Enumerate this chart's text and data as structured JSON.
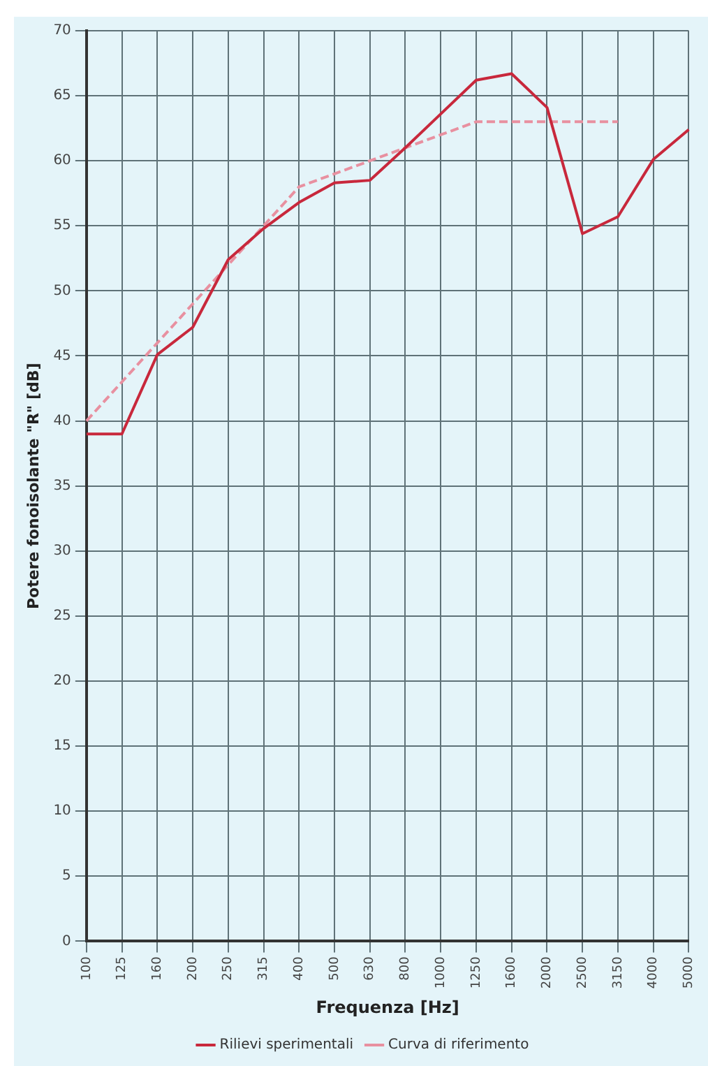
{
  "chart_data": {
    "type": "line",
    "xlabel": "Frequenza [Hz]",
    "ylabel": "Potere fonoisolante \"R\" [dB]",
    "categories": [
      "100",
      "125",
      "160",
      "200",
      "250",
      "315",
      "400",
      "500",
      "630",
      "800",
      "1000",
      "1250",
      "1600",
      "2000",
      "2500",
      "3150",
      "4000",
      "5000"
    ],
    "series": [
      {
        "name": "Rilievi sperimentali",
        "color": "#c8283c",
        "line_style": "solid",
        "values": [
          39,
          39,
          45.1,
          47.2,
          52.4,
          54.8,
          56.8,
          58.3,
          58.5,
          61,
          63.6,
          66.2,
          66.7,
          64.1,
          54.4,
          55.7,
          60.1,
          62.4
        ]
      },
      {
        "name": "Curva di riferimento",
        "color": "#e890a0",
        "line_style": "dashed",
        "values": [
          40,
          43,
          46,
          49,
          52,
          55,
          58,
          59,
          60,
          61,
          62,
          63,
          63,
          63,
          63,
          63,
          null,
          null
        ]
      }
    ],
    "ylim": [
      0,
      70
    ],
    "yticks": [
      0,
      5,
      10,
      15,
      20,
      25,
      30,
      35,
      40,
      45,
      50,
      55,
      60,
      65,
      70
    ],
    "grid": true,
    "legend": "bottom",
    "marker": "none"
  }
}
